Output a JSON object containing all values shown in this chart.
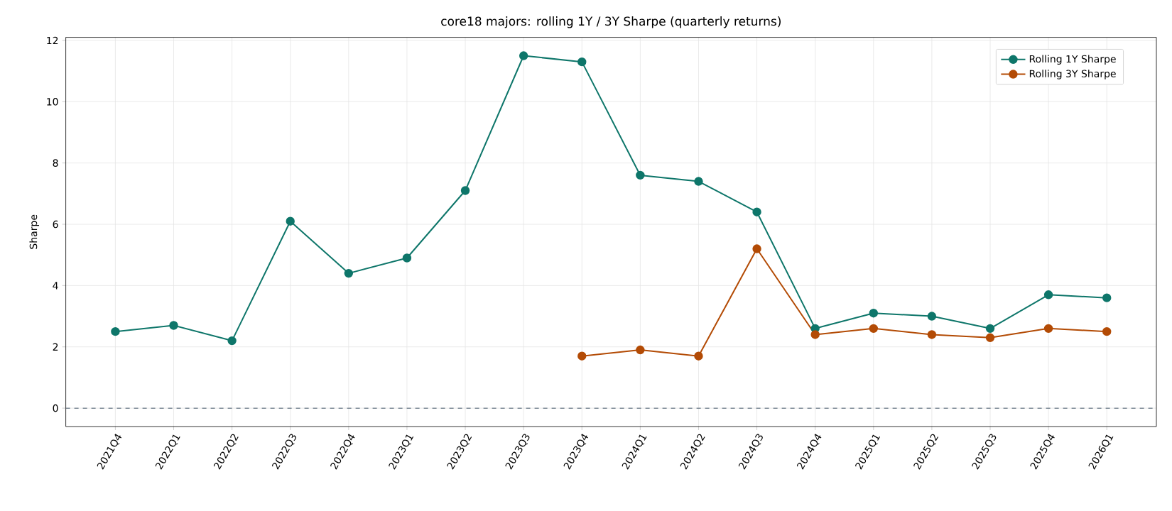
{
  "chart_data": {
    "type": "line",
    "title": "core18 majors: rolling 1Y / 3Y Sharpe (quarterly returns)",
    "ylabel": "Sharpe",
    "categories": [
      "2021Q4",
      "2022Q1",
      "2022Q2",
      "2022Q3",
      "2022Q4",
      "2023Q1",
      "2023Q2",
      "2023Q3",
      "2023Q4",
      "2024Q1",
      "2024Q2",
      "2024Q3",
      "2024Q4",
      "2025Q1",
      "2025Q2",
      "2025Q3",
      "2025Q4",
      "2026Q1"
    ],
    "series": [
      {
        "name": "Rolling 1Y Sharpe",
        "color": "#0e766a",
        "values": [
          2.5,
          2.7,
          2.2,
          6.1,
          4.4,
          4.9,
          7.1,
          11.5,
          11.3,
          7.6,
          7.4,
          6.4,
          2.6,
          3.1,
          3.0,
          2.6,
          3.7,
          3.6
        ]
      },
      {
        "name": "Rolling 3Y Sharpe",
        "color": "#b34b05",
        "values": [
          null,
          null,
          null,
          null,
          null,
          null,
          null,
          null,
          1.7,
          1.9,
          1.7,
          5.2,
          2.4,
          2.6,
          2.4,
          2.3,
          2.6,
          2.5
        ]
      }
    ],
    "ylim": [
      -0.6,
      12.1
    ],
    "yticks": [
      0,
      2,
      4,
      6,
      8,
      10,
      12
    ],
    "ref_lines": [
      {
        "axis": "y",
        "value": 0,
        "color": "#5a6b7b",
        "line_style": "dashed"
      }
    ],
    "grid": true,
    "legend": "top right",
    "marker": "circle",
    "line_style": "solid"
  }
}
